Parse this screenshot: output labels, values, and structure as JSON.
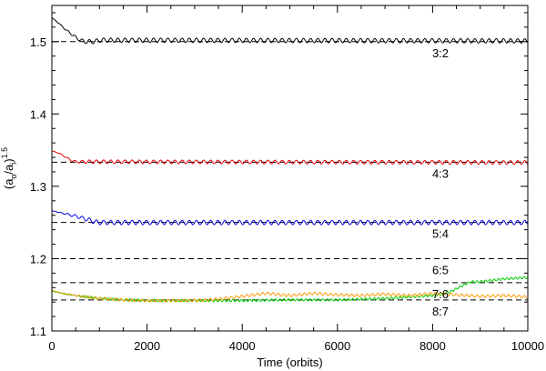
{
  "chart_data": {
    "type": "line",
    "xlabel": "Time (orbits)",
    "ylabel": {
      "base": "(a",
      "sub1": "o",
      "mid": "/a",
      "sub2": "i",
      "close": ")",
      "sup": "1.5"
    },
    "xlim": [
      0,
      10000
    ],
    "ylim": [
      1.1,
      1.55
    ],
    "x_ticks": [
      0,
      2000,
      4000,
      6000,
      8000,
      10000
    ],
    "x_tick_labels": [
      "0",
      "2000",
      "4000",
      "6000",
      "8000",
      "10000"
    ],
    "y_ticks": [
      1.1,
      1.2,
      1.3,
      1.4,
      1.5
    ],
    "y_tick_labels": [
      "1.1",
      "1.2",
      "1.3",
      "1.4",
      "1.5"
    ],
    "x_minor_step": 500,
    "y_minor_step": 0.02,
    "grid": false,
    "legend": "none",
    "resonances": [
      {
        "label": "3:2",
        "value": 1.5
      },
      {
        "label": "4:3",
        "value": 1.3333
      },
      {
        "label": "5:4",
        "value": 1.25
      },
      {
        "label": "6:5",
        "value": 1.2
      },
      {
        "label": "7:6",
        "value": 1.1667
      },
      {
        "label": "8:7",
        "value": 1.1429
      }
    ],
    "series": [
      {
        "color": "#000000",
        "x": [
          0,
          100,
          200,
          300,
          400,
          500,
          600,
          700,
          800,
          900,
          1000,
          10000
        ],
        "y": [
          1.533,
          1.528,
          1.522,
          1.516,
          1.511,
          1.506,
          1.502,
          1.5,
          1.5,
          1.5,
          1.502,
          1.501
        ],
        "oscillation": {
          "amplitude": 0.003,
          "period": 150
        }
      },
      {
        "color": "#dd0000",
        "x": [
          0,
          100,
          200,
          300,
          400,
          500,
          600,
          700,
          800,
          10000
        ],
        "y": [
          1.349,
          1.347,
          1.344,
          1.34,
          1.336,
          1.334,
          1.334,
          1.334,
          1.334,
          1.333
        ],
        "oscillation": {
          "amplitude": 0.0025,
          "period": 150
        }
      },
      {
        "color": "#0000dd",
        "x": [
          0,
          100,
          200,
          300,
          400,
          500,
          600,
          700,
          800,
          900,
          1000,
          10000
        ],
        "y": [
          1.266,
          1.265,
          1.263,
          1.262,
          1.26,
          1.259,
          1.257,
          1.255,
          1.253,
          1.251,
          1.25,
          1.25
        ],
        "oscillation": {
          "amplitude": 0.003,
          "period": 150
        }
      },
      {
        "color": "#00cc00",
        "x": [
          0,
          300,
          600,
          1000,
          1500,
          2000,
          3000,
          4000,
          5000,
          6000,
          7000,
          7500,
          8000,
          8200,
          8400,
          8600,
          8800,
          9000,
          9500,
          10000
        ],
        "y": [
          1.155,
          1.151,
          1.148,
          1.145,
          1.143,
          1.142,
          1.142,
          1.142,
          1.143,
          1.143,
          1.145,
          1.147,
          1.149,
          1.151,
          1.155,
          1.162,
          1.168,
          1.168,
          1.172,
          1.174
        ],
        "oscillation": {
          "amplitude": 0.0015,
          "period": 90
        }
      },
      {
        "color": "#ff9900",
        "x": [
          0,
          300,
          600,
          1000,
          1500,
          2000,
          2500,
          3000,
          3500,
          4000,
          4500,
          5000,
          5500,
          6000,
          6500,
          7000,
          7500,
          8000,
          8500,
          9000,
          9500,
          10000
        ],
        "y": [
          1.156,
          1.151,
          1.148,
          1.145,
          1.143,
          1.142,
          1.142,
          1.142,
          1.144,
          1.148,
          1.152,
          1.149,
          1.152,
          1.15,
          1.149,
          1.151,
          1.149,
          1.152,
          1.15,
          1.148,
          1.149,
          1.147
        ],
        "oscillation": {
          "amplitude": 0.0018,
          "period": 110
        }
      }
    ]
  }
}
